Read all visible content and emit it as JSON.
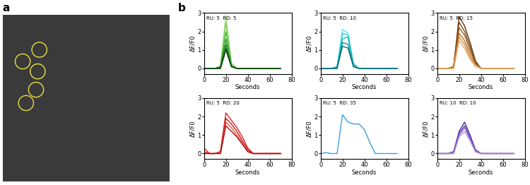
{
  "panel_labels": [
    "a",
    "b"
  ],
  "chart_data": [
    {
      "type": "line",
      "annotation": "RU: 5  RD: 5",
      "x_label": "Seconds",
      "y_label": "ΔF/F0",
      "x": [
        0,
        5,
        10,
        15,
        20,
        25,
        30,
        35,
        40,
        45,
        50,
        55,
        60,
        65,
        70
      ],
      "xlim": [
        0,
        80
      ],
      "ylim": [
        -0.3,
        3
      ],
      "xticks": [
        0,
        20,
        40,
        60,
        80
      ],
      "yticks": [
        0,
        1,
        2,
        3
      ],
      "series": [
        {
          "color": "#a8e08a",
          "values": [
            0,
            0,
            0,
            0.1,
            2.9,
            0.3,
            0,
            0,
            0,
            0,
            0,
            0,
            0,
            0,
            0
          ]
        },
        {
          "color": "#7ccf5e",
          "values": [
            0,
            0,
            0,
            0.1,
            2.5,
            0.2,
            0,
            0,
            0,
            0,
            0,
            0,
            0,
            0,
            0
          ]
        },
        {
          "color": "#4fb83a",
          "values": [
            0,
            0,
            0,
            0.1,
            2.0,
            0.2,
            0,
            0,
            0,
            0,
            0,
            0,
            0,
            0,
            0
          ]
        },
        {
          "color": "#2f9a2a",
          "values": [
            0,
            0,
            0,
            0.1,
            1.6,
            0.1,
            0,
            0,
            0,
            0,
            0,
            0,
            0,
            0,
            0
          ]
        },
        {
          "color": "#1f7a1f",
          "values": [
            0,
            0,
            0,
            0.1,
            1.3,
            0.1,
            0,
            0,
            0,
            0,
            0,
            0,
            0,
            0,
            0
          ]
        },
        {
          "color": "#155f15",
          "values": [
            0,
            0,
            0,
            0.0,
            1.1,
            0.1,
            0,
            0,
            0,
            0,
            0,
            0,
            0,
            0,
            0
          ]
        },
        {
          "color": "#0d450d",
          "values": [
            0,
            0,
            0,
            0.0,
            1.0,
            0.1,
            0,
            0,
            0,
            0,
            0,
            0,
            0,
            0,
            0
          ]
        }
      ]
    },
    {
      "type": "line",
      "annotation": "RU: 5  RD: 10",
      "x_label": "Seconds",
      "y_label": "ΔF/F0",
      "x": [
        0,
        5,
        10,
        15,
        20,
        25,
        30,
        35,
        40,
        45,
        50,
        55,
        60,
        65,
        70
      ],
      "xlim": [
        0,
        80
      ],
      "ylim": [
        -0.3,
        3
      ],
      "xticks": [
        0,
        20,
        40,
        60,
        80
      ],
      "yticks": [
        0,
        1,
        2,
        3
      ],
      "series": [
        {
          "color": "#66e0e8",
          "values": [
            0,
            0,
            0,
            0.1,
            2.1,
            1.9,
            0.3,
            0,
            0,
            0,
            0,
            0,
            0,
            0,
            0
          ]
        },
        {
          "color": "#2ccfd8",
          "values": [
            0,
            0,
            0,
            0.1,
            1.9,
            1.8,
            0.2,
            0,
            0,
            0,
            0,
            0,
            0,
            0,
            0
          ]
        },
        {
          "color": "#12b3bf",
          "values": [
            0,
            0,
            0,
            0.1,
            1.6,
            1.7,
            0.2,
            0,
            0,
            0,
            0,
            0,
            0,
            0,
            0
          ]
        },
        {
          "color": "#0e8f99",
          "values": [
            0,
            0,
            0,
            0.0,
            1.4,
            1.3,
            0.1,
            0,
            0,
            0,
            0,
            0,
            0,
            0,
            0
          ]
        },
        {
          "color": "#0a6b73",
          "values": [
            0,
            0,
            0,
            0.0,
            1.2,
            1.1,
            0.1,
            0,
            0,
            0,
            0,
            0,
            0,
            0,
            0
          ]
        }
      ]
    },
    {
      "type": "line",
      "annotation": "RU: 5  RD: 15",
      "x_label": "Seconds",
      "y_label": "ΔF/F0",
      "x": [
        0,
        5,
        10,
        15,
        20,
        25,
        30,
        35,
        40,
        45,
        50,
        55,
        60,
        65,
        70
      ],
      "xlim": [
        0,
        80
      ],
      "ylim": [
        -0.3,
        3
      ],
      "xticks": [
        0,
        20,
        40,
        60,
        80
      ],
      "yticks": [
        0,
        1,
        2,
        3
      ],
      "series": [
        {
          "color": "#5a3210",
          "values": [
            0,
            0,
            0,
            0.1,
            2.8,
            2.3,
            1.4,
            0.4,
            0,
            0,
            0,
            0,
            0,
            0,
            0
          ]
        },
        {
          "color": "#7a4516",
          "values": [
            0,
            0,
            0,
            0.1,
            2.5,
            2.0,
            1.2,
            0.3,
            0,
            0,
            0,
            0,
            0,
            0,
            0
          ]
        },
        {
          "color": "#9a5a1c",
          "values": [
            0,
            0,
            0,
            0.1,
            2.2,
            1.8,
            1.0,
            0.3,
            0,
            0,
            0,
            0,
            0,
            0,
            0
          ]
        },
        {
          "color": "#b86f24",
          "values": [
            0,
            0,
            0,
            0.1,
            1.9,
            1.5,
            0.8,
            0.2,
            0,
            0,
            0,
            0,
            0,
            0,
            0
          ]
        },
        {
          "color": "#d4883a",
          "values": [
            0,
            0,
            0,
            0.0,
            1.7,
            1.3,
            0.6,
            0.2,
            0,
            0,
            0,
            0,
            0,
            0,
            0
          ]
        },
        {
          "color": "#e8a860",
          "values": [
            0,
            0,
            0,
            0.0,
            1.5,
            1.1,
            0.5,
            0.1,
            0,
            0,
            0,
            0,
            0,
            0,
            0
          ]
        }
      ]
    },
    {
      "type": "line",
      "annotation": "RU: 5  RD: 20",
      "x_label": "Seconds",
      "y_label": "ΔF/F0",
      "x": [
        0,
        5,
        10,
        15,
        20,
        25,
        30,
        35,
        40,
        45,
        50,
        55,
        60,
        65,
        70
      ],
      "xlim": [
        0,
        80
      ],
      "ylim": [
        -0.3,
        3
      ],
      "xticks": [
        0,
        20,
        40,
        60,
        80
      ],
      "yticks": [
        0,
        1,
        2,
        3
      ],
      "series": [
        {
          "color": "#e02020",
          "values": [
            0.3,
            0,
            0,
            0.1,
            2.2,
            1.8,
            1.4,
            0.9,
            0.3,
            0,
            0,
            0,
            0,
            0,
            0
          ]
        },
        {
          "color": "#c81818",
          "values": [
            0.1,
            0,
            0,
            0.1,
            1.9,
            1.6,
            1.2,
            0.7,
            0.2,
            0,
            0,
            0,
            0,
            0,
            0
          ]
        },
        {
          "color": "#f05050",
          "values": [
            0,
            0,
            0,
            0.0,
            1.7,
            1.4,
            1.0,
            0.6,
            0.1,
            0,
            0,
            0,
            0,
            0,
            0
          ]
        },
        {
          "color": "#a01010",
          "values": [
            0,
            0,
            0,
            0.0,
            1.5,
            1.2,
            0.9,
            0.5,
            0.1,
            0,
            0,
            0,
            0,
            0,
            0
          ]
        }
      ]
    },
    {
      "type": "line",
      "annotation": "RU: 5  RD: 35",
      "x_label": "Seconds",
      "y_label": "ΔF/F0",
      "x": [
        0,
        5,
        10,
        15,
        20,
        25,
        30,
        35,
        40,
        45,
        50,
        55,
        60,
        65,
        70
      ],
      "xlim": [
        0,
        80
      ],
      "ylim": [
        -0.3,
        3
      ],
      "xticks": [
        0,
        20,
        40,
        60,
        80
      ],
      "yticks": [
        0,
        1,
        2,
        3
      ],
      "series": [
        {
          "color": "#3aa0e0",
          "values": [
            0,
            0.05,
            0,
            0,
            2.1,
            1.7,
            1.6,
            1.6,
            1.3,
            0.6,
            0,
            0,
            0,
            0,
            0
          ]
        }
      ]
    },
    {
      "type": "line",
      "annotation": "RU: 10  RD: 10",
      "x_label": "Seconds",
      "y_label": "ΔF/F0",
      "x": [
        0,
        5,
        10,
        15,
        20,
        25,
        30,
        35,
        40,
        45,
        50,
        55,
        60,
        65,
        70
      ],
      "xlim": [
        0,
        80
      ],
      "ylim": [
        -0.3,
        3
      ],
      "xticks": [
        0,
        20,
        40,
        60,
        80
      ],
      "yticks": [
        0,
        1,
        2,
        3
      ],
      "series": [
        {
          "color": "#4a2a8a",
          "values": [
            0,
            0,
            0,
            0.1,
            1.2,
            1.7,
            1.0,
            0.2,
            0,
            0,
            0,
            0,
            0,
            0,
            0
          ]
        },
        {
          "color": "#6a44b0",
          "values": [
            0,
            0,
            0,
            0.1,
            1.1,
            1.5,
            0.9,
            0.2,
            0,
            0,
            0,
            0,
            0,
            0,
            0
          ]
        },
        {
          "color": "#8a66c8",
          "values": [
            0,
            0,
            0,
            0.0,
            1.0,
            1.4,
            0.8,
            0.1,
            0,
            0,
            0,
            0,
            0,
            0,
            0
          ]
        },
        {
          "color": "#a88ad8",
          "values": [
            0,
            0,
            0,
            0.0,
            0.9,
            1.2,
            0.7,
            0.1,
            0,
            0,
            0,
            0,
            0,
            0,
            0
          ]
        }
      ]
    }
  ]
}
